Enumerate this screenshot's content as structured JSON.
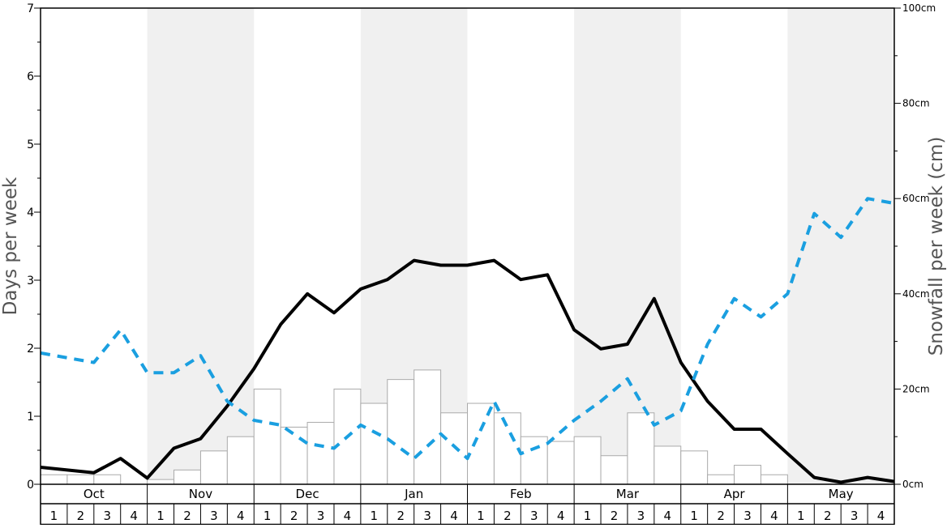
{
  "chart_data": {
    "type": "bar+line",
    "ylabel_left": "Days per week",
    "ylabel_right": "Snowfall per week (cm)",
    "left_axis": {
      "min": 0,
      "max": 7,
      "ticks": [
        "0",
        "1",
        "2",
        "3",
        "4",
        "5",
        "6",
        "7"
      ]
    },
    "right_axis": {
      "min": 0,
      "max": 100,
      "ticks": [
        "0cm",
        "20cm",
        "40cm",
        "60cm",
        "80cm",
        "100cm"
      ]
    },
    "months": [
      "Oct",
      "Nov",
      "Dec",
      "Jan",
      "Feb",
      "Mar",
      "Apr",
      "May"
    ],
    "week_labels": [
      "1",
      "2",
      "3",
      "4"
    ],
    "colors": {
      "bars_fill": "#ffffff",
      "bars_stroke": "#aaaaaa",
      "solid_line": "#000000",
      "dashed_line": "#1a9fe0",
      "shade": "#f0f0f0"
    },
    "series": [
      {
        "kind": "bar",
        "axis": "right",
        "values": [
          2,
          2,
          2,
          0,
          1,
          3,
          7,
          10,
          20,
          12,
          13,
          20,
          17,
          22,
          24,
          15,
          17,
          15,
          10,
          9,
          10,
          6,
          15,
          8,
          7,
          2,
          4,
          2,
          0,
          0,
          0,
          0
        ]
      },
      {
        "kind": "line",
        "style": "solid",
        "axis": "left",
        "values": [
          0.25,
          0.21,
          0.17,
          0.38,
          0.09,
          0.53,
          0.67,
          1.15,
          1.7,
          2.35,
          2.8,
          2.52,
          2.87,
          3.01,
          3.29,
          3.22,
          3.22,
          3.29,
          3.01,
          3.08,
          2.27,
          1.99,
          2.06,
          2.73,
          1.79,
          1.22,
          0.81,
          0.81,
          0.45,
          0.1,
          0.03,
          0.1,
          0.04
        ]
      },
      {
        "kind": "line",
        "style": "dashed",
        "axis": "left",
        "values": [
          1.93,
          1.86,
          1.79,
          2.27,
          1.64,
          1.64,
          1.89,
          1.22,
          0.94,
          0.87,
          0.6,
          0.53,
          0.87,
          0.67,
          0.38,
          0.74,
          0.38,
          1.22,
          0.45,
          0.6,
          0.94,
          1.22,
          1.55,
          0.87,
          1.08,
          2.06,
          2.73,
          2.46,
          2.8,
          3.98,
          3.63,
          4.2,
          4.13
        ]
      }
    ]
  }
}
